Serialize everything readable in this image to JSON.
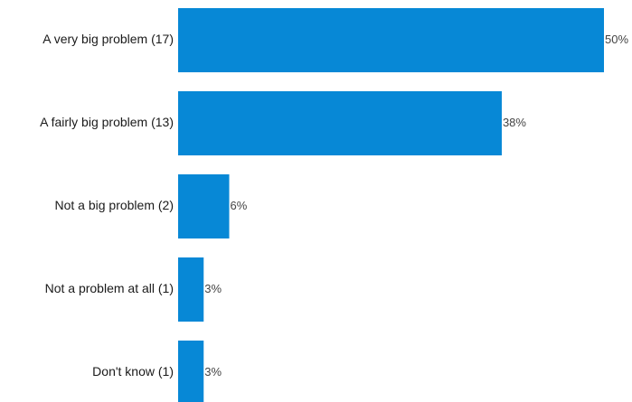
{
  "chart_data": {
    "type": "bar",
    "orientation": "horizontal",
    "categories": [
      "A very big problem (17)",
      "A fairly big problem (13)",
      "Not a big problem (2)",
      "Not a problem at all (1)",
      "Don't know (1)"
    ],
    "values": [
      50,
      38,
      6,
      3,
      3
    ],
    "value_labels": [
      "50%",
      "38%",
      "6%",
      "3%",
      "3%"
    ],
    "unit": "%",
    "xlim": [
      0,
      50
    ],
    "grid": false,
    "legend": "none",
    "bar_color": "#0788d6"
  }
}
